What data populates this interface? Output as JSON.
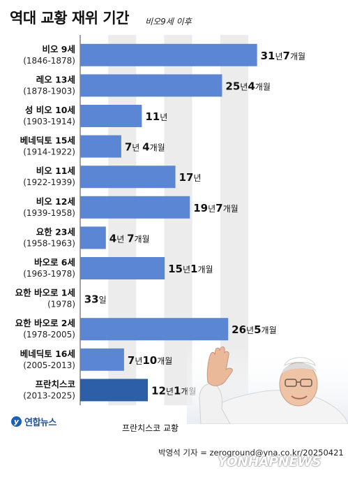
{
  "header": {
    "title": "역대 교황 재위 기간",
    "subtitle": "비오9세 이후"
  },
  "chart_data": {
    "type": "bar",
    "orientation": "horizontal",
    "title": "역대 교황 재위 기간",
    "subtitle": "비오9세 이후",
    "value_unit": "years",
    "xlim": [
      0,
      32
    ],
    "grid": true,
    "rows": [
      {
        "name": "비오 9세",
        "years": "(1846-1878)",
        "value": 31.58,
        "label": [
          [
            "31",
            "num"
          ],
          [
            "년",
            "unit"
          ],
          [
            "7",
            "num"
          ],
          [
            "개월",
            "unit"
          ]
        ]
      },
      {
        "name": "레오 13세",
        "years": "(1878-1903)",
        "value": 25.33,
        "label": [
          [
            "25",
            "num"
          ],
          [
            "년",
            "unit"
          ],
          [
            "4",
            "num"
          ],
          [
            "개월",
            "unit"
          ]
        ]
      },
      {
        "name": "성 비오 10세",
        "years": "(1903-1914)",
        "value": 11,
        "label": [
          [
            "11",
            "num"
          ],
          [
            "년",
            "unit"
          ]
        ]
      },
      {
        "name": "베네딕토 15세",
        "years": "(1914-1922)",
        "value": 7.33,
        "label": [
          [
            "7",
            "num"
          ],
          [
            "년 ",
            "unit"
          ],
          [
            "4",
            "num"
          ],
          [
            "개월",
            "unit"
          ]
        ]
      },
      {
        "name": "비오 11세",
        "years": "(1922-1939)",
        "value": 17,
        "label": [
          [
            "17",
            "num"
          ],
          [
            "년",
            "unit"
          ]
        ]
      },
      {
        "name": "비오 12세",
        "years": "(1939-1958)",
        "value": 19.58,
        "label": [
          [
            "19",
            "num"
          ],
          [
            "년",
            "unit"
          ],
          [
            "7",
            "num"
          ],
          [
            "개월",
            "unit"
          ]
        ]
      },
      {
        "name": "요한 23세",
        "years": "(1958-1963)",
        "value": 4.58,
        "label": [
          [
            "4",
            "num"
          ],
          [
            "년 ",
            "unit"
          ],
          [
            "7",
            "num"
          ],
          [
            "개월",
            "unit"
          ]
        ]
      },
      {
        "name": "바오로 6세",
        "years": "(1963-1978)",
        "value": 15.08,
        "label": [
          [
            "15",
            "num"
          ],
          [
            "년",
            "unit"
          ],
          [
            "1",
            "num"
          ],
          [
            "개월",
            "unit"
          ]
        ]
      },
      {
        "name": "요한 바오로 1세",
        "years": "(1978)",
        "value": 0.09,
        "label": [
          [
            "33",
            "num"
          ],
          [
            "일",
            "unit"
          ]
        ]
      },
      {
        "name": "요한 바오로 2세",
        "years": "(1978-2005)",
        "value": 26.42,
        "label": [
          [
            "26",
            "num"
          ],
          [
            "년",
            "unit"
          ],
          [
            "5",
            "num"
          ],
          [
            "개월",
            "unit"
          ]
        ]
      },
      {
        "name": "베네딕토 16세",
        "years": "(2005-2013)",
        "value": 7.83,
        "label": [
          [
            "7",
            "num"
          ],
          [
            "년",
            "unit"
          ],
          [
            "10",
            "num"
          ],
          [
            "개월",
            "unit"
          ]
        ]
      },
      {
        "name": "프란치스코",
        "years": "(2013-2025)",
        "value": 12.08,
        "label": [
          [
            "12",
            "num"
          ],
          [
            "년",
            "unit"
          ],
          [
            "1",
            "num"
          ],
          [
            "개월",
            "unit"
          ]
        ],
        "highlight": true
      }
    ],
    "colors": {
      "bar": "#5b86d4",
      "highlight_bar": "#2d5ea8",
      "grid_band": "#ececec"
    }
  },
  "footer": {
    "logo_text": "연합뉴스",
    "logo_mark": "y",
    "photo_caption": "프란치스코 교황",
    "credit": "박영석 기자 = zeroground@yna.co.kr/20250421",
    "watermark": "YONHAPNEWS"
  }
}
